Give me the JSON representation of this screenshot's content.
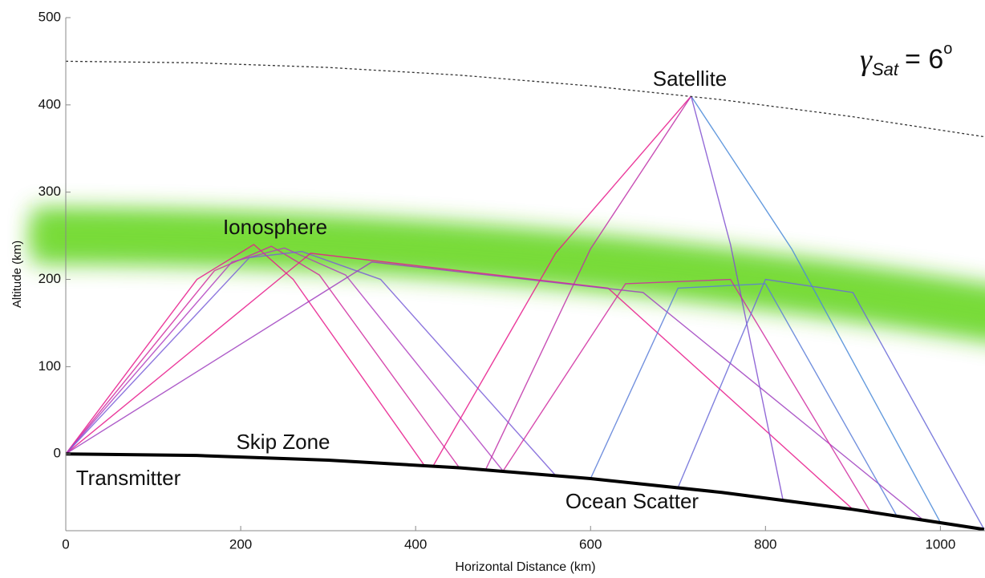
{
  "chart_data": {
    "type": "ray-trace",
    "x_label": "Horizontal Distance (km)",
    "y_label": "Altitude (km)",
    "xlim": [
      0,
      1051
    ],
    "ylim": [
      -88,
      500
    ],
    "xticks": [
      0,
      200,
      400,
      600,
      800,
      1000
    ],
    "yticks": [
      0,
      100,
      200,
      300,
      400,
      500
    ],
    "annotations": {
      "satellite": "Satellite",
      "ionosphere": "Ionosphere",
      "skip_zone": "Skip Zone",
      "transmitter": "Transmitter",
      "ocean_scatter": "Ocean Scatter",
      "gamma_symbol": "γ",
      "gamma_subscript": "Sat",
      "gamma_value": "= 6",
      "gamma_degree": "o"
    },
    "surface": {
      "color": "#000000",
      "x": [
        0,
        150,
        300,
        450,
        600,
        750,
        900,
        1050
      ],
      "y": [
        0,
        -1.8,
        -7.1,
        -15.9,
        -28.3,
        -44.1,
        -63.6,
        -86.5
      ]
    },
    "orbit": {
      "color": "#333333",
      "x": [
        0,
        150,
        300,
        450,
        600,
        750,
        900,
        1050
      ],
      "y": [
        450,
        448.2,
        442.9,
        434.1,
        421.7,
        405.9,
        386.4,
        363.5
      ]
    },
    "rays": [
      {
        "color": "#e8198b",
        "x": [
          0,
          150,
          215,
          260,
          410
        ],
        "y": [
          0,
          200,
          240,
          200,
          -13.2
        ]
      },
      {
        "color": "#d02ca0",
        "x": [
          0,
          170,
          235,
          290,
          450
        ],
        "y": [
          0,
          210,
          238,
          205,
          -15.9
        ]
      },
      {
        "color": "#b040c0",
        "x": [
          0,
          190,
          250,
          320,
          500
        ],
        "y": [
          0,
          220,
          236,
          205,
          -19.6
        ]
      },
      {
        "color": "#7a5fd8",
        "x": [
          0,
          210,
          270,
          360,
          560
        ],
        "y": [
          0,
          225,
          232,
          200,
          -24.6
        ]
      },
      {
        "color": "#e8198b",
        "x": [
          0,
          280,
          620,
          900
        ],
        "y": [
          0,
          230,
          190,
          -63.6
        ]
      },
      {
        "color": "#a040c0",
        "x": [
          0,
          350,
          660,
          980
        ],
        "y": [
          0,
          220,
          185,
          -75.4
        ]
      },
      {
        "color": "#e8198b",
        "x": [
          715,
          560,
          420
        ],
        "y": [
          410,
          230,
          -13.8
        ]
      },
      {
        "color": "#c030a8",
        "x": [
          715,
          600,
          480
        ],
        "y": [
          410,
          235,
          -18.1
        ]
      },
      {
        "color": "#4a8ad8",
        "x": [
          715,
          830,
          1000
        ],
        "y": [
          410,
          235,
          -78.5
        ]
      },
      {
        "color": "#8050d0",
        "x": [
          715,
          760,
          820
        ],
        "y": [
          410,
          240,
          -52.8
        ]
      },
      {
        "color": "#5a7ed8",
        "x": [
          600,
          700,
          800,
          950
        ],
        "y": [
          -28.3,
          190,
          195,
          -70.8
        ]
      },
      {
        "color": "#d02ca0",
        "x": [
          500,
          640,
          760,
          920
        ],
        "y": [
          -19.6,
          195,
          200,
          -66.4
        ]
      },
      {
        "color": "#6a6ad8",
        "x": [
          700,
          800,
          900,
          1050
        ],
        "y": [
          -38.5,
          200,
          185,
          -86.5
        ]
      }
    ]
  }
}
